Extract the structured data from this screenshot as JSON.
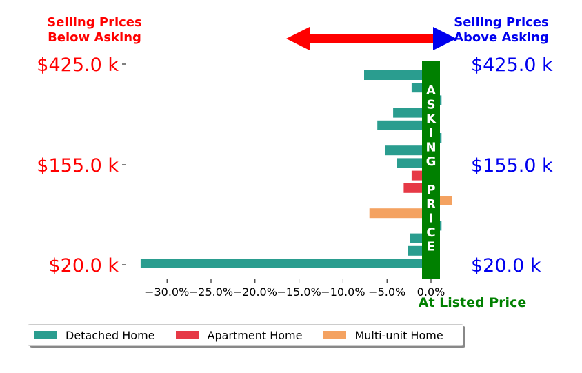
{
  "chart_data": {
    "type": "bar",
    "orientation": "horizontal",
    "annotations": {
      "below_label": "Selling Prices\nBelow Asking",
      "above_label": "Selling Prices\nAbove Asking",
      "center_band_text": "ASKING PRICE",
      "listed_label": "At Listed Price"
    },
    "y_tick_labels": [
      "$425.0 k",
      "$155.0 k",
      "$20.0 k"
    ],
    "x_ticks": [
      -30,
      -25,
      -20,
      -15,
      -10,
      -5,
      0
    ],
    "x_tick_labels": [
      "−30.0%",
      "−25.0%",
      "−20.0%",
      "−15.0%",
      "−10.0%",
      "−5.0%",
      "0.0%"
    ],
    "xlim": [
      -33.5,
      2.5
    ],
    "series": [
      {
        "name": "Detached Home",
        "color": "#2a9d8f"
      },
      {
        "name": "Apartment Home",
        "color": "#e63946"
      },
      {
        "name": "Multi-unit Home",
        "color": "#f4a261"
      }
    ],
    "bars": [
      {
        "series": 0,
        "value": -7.6
      },
      {
        "series": 0,
        "value": -2.2
      },
      {
        "series": 0,
        "value": 1.2
      },
      {
        "series": 0,
        "value": -4.3
      },
      {
        "series": 0,
        "value": -6.1
      },
      {
        "series": 0,
        "value": 1.2
      },
      {
        "series": 0,
        "value": -5.2
      },
      {
        "series": 0,
        "value": -3.9
      },
      {
        "series": 1,
        "value": -2.2
      },
      {
        "series": 1,
        "value": -3.1
      },
      {
        "series": 2,
        "value": 2.4
      },
      {
        "series": 2,
        "value": -7.0
      },
      {
        "series": 0,
        "value": 1.2
      },
      {
        "series": 0,
        "value": -2.4
      },
      {
        "series": 0,
        "value": -2.6
      },
      {
        "series": 0,
        "value": -33.0
      }
    ],
    "colors": {
      "below": "#ff0000",
      "above": "#0000ee",
      "band": "#008000"
    }
  }
}
